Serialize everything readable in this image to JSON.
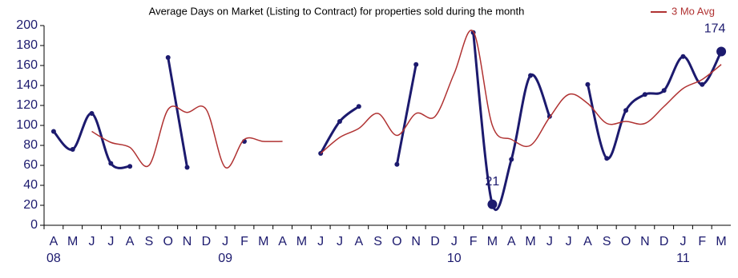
{
  "chart_data": {
    "type": "line",
    "title": "Average Days on Market (Listing to Contract) for properties sold during the month",
    "categories": [
      "A",
      "M",
      "J",
      "J",
      "A",
      "S",
      "O",
      "N",
      "D",
      "J",
      "F",
      "M",
      "A",
      "M",
      "J",
      "J",
      "A",
      "S",
      "O",
      "N",
      "D",
      "J",
      "F",
      "M",
      "A",
      "M",
      "J",
      "J",
      "A",
      "S",
      "O",
      "N",
      "D",
      "J",
      "F",
      "M"
    ],
    "x_year_labels": [
      "08",
      null,
      null,
      null,
      null,
      null,
      null,
      null,
      null,
      "09",
      null,
      null,
      null,
      null,
      null,
      null,
      null,
      null,
      null,
      null,
      null,
      "10",
      null,
      null,
      null,
      null,
      null,
      null,
      null,
      null,
      null,
      null,
      null,
      "11",
      null,
      null
    ],
    "series": [
      {
        "color": "#1c1a6e",
        "values": [
          94,
          76,
          112,
          62,
          59,
          null,
          168,
          58,
          null,
          null,
          84,
          null,
          null,
          null,
          72,
          104,
          119,
          null,
          61,
          161,
          null,
          null,
          193,
          21,
          66,
          150,
          109,
          null,
          141,
          67,
          115,
          131,
          135,
          169,
          141,
          174
        ],
        "value_labels": [
          null,
          null,
          null,
          null,
          null,
          null,
          null,
          null,
          null,
          null,
          null,
          null,
          null,
          null,
          null,
          null,
          null,
          null,
          null,
          null,
          null,
          null,
          null,
          "21",
          null,
          null,
          null,
          null,
          null,
          null,
          null,
          null,
          null,
          null,
          null,
          "174"
        ]
      },
      {
        "name": "3 Mo Avg",
        "color": "#b03232",
        "values": [
          null,
          null,
          94,
          83,
          78,
          60,
          116,
          113,
          116,
          58,
          86,
          84,
          84,
          null,
          72,
          88,
          97,
          112,
          90,
          112,
          109,
          152,
          194,
          100,
          86,
          80,
          108,
          131,
          122,
          102,
          104,
          102,
          119,
          137,
          146,
          161
        ]
      }
    ],
    "ylim": [
      0,
      200
    ],
    "yticks": [
      0,
      20,
      40,
      60,
      80,
      100,
      120,
      140,
      160,
      180,
      200
    ],
    "grid": false,
    "legend": "top-right"
  }
}
